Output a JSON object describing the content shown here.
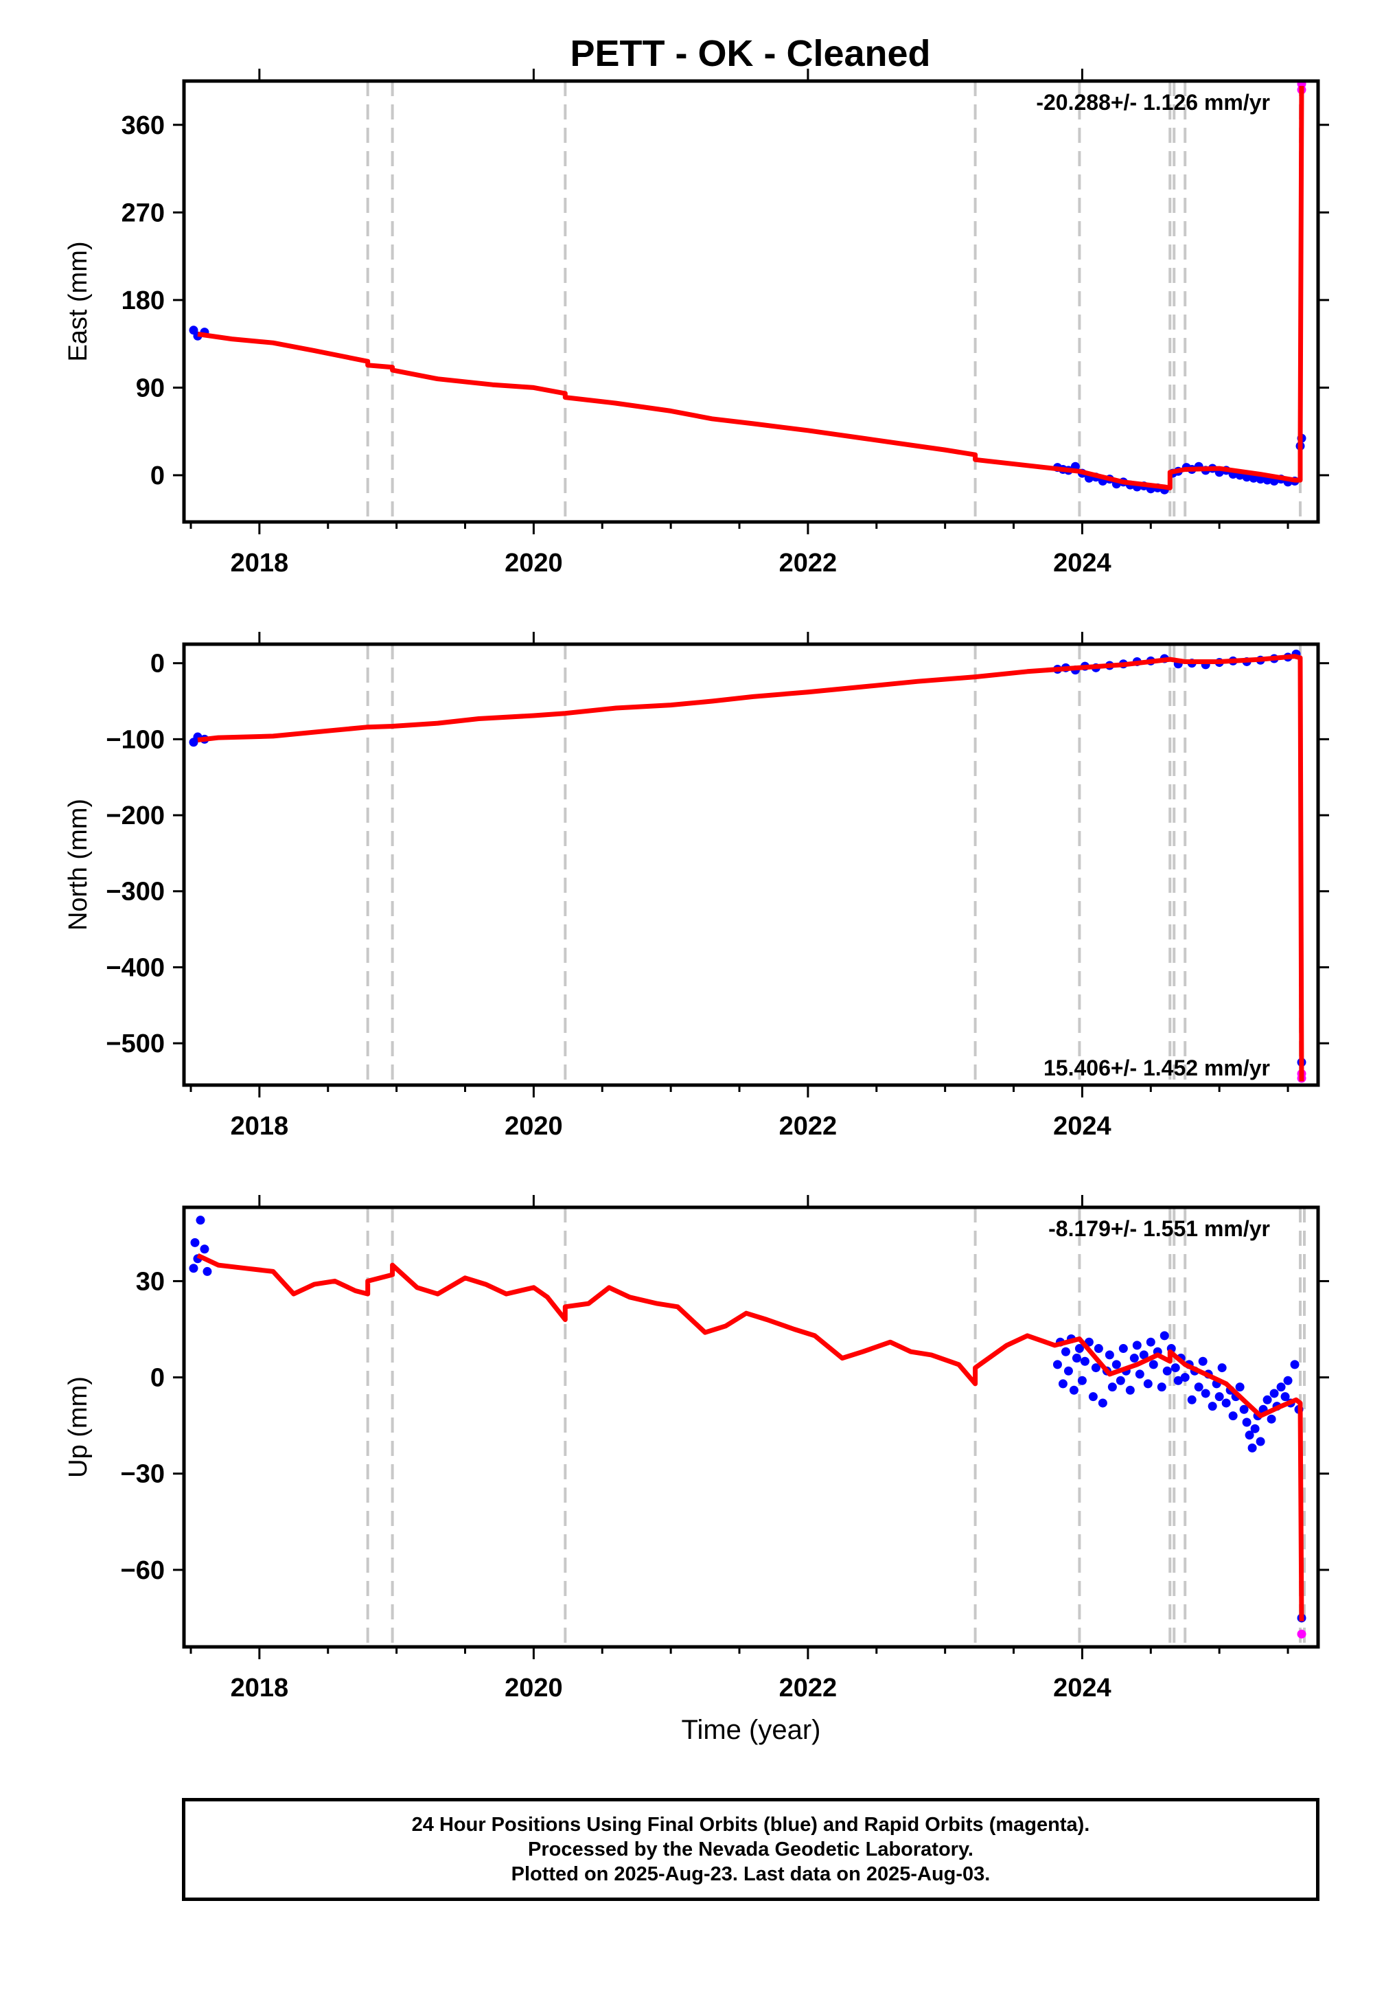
{
  "title": "PETT  - OK - Cleaned",
  "colors": {
    "final_orbits": "#0000ff",
    "rapid_orbits": "#ff00ff",
    "model": "#ff0000",
    "steps": "#c8c8c8",
    "axes": "#000000"
  },
  "chart_data": [
    {
      "type": "scatter",
      "name": "east",
      "ylabel": "East (mm)",
      "xlabel": "",
      "rate_label": "-20.288+/- 1.126 mm/yr",
      "rate_position": "top-right",
      "xlim": [
        2017.45,
        2025.72
      ],
      "ylim": [
        -48,
        405
      ],
      "yticks": [
        0,
        90,
        180,
        270,
        360
      ],
      "ytick_labels": [
        "0",
        "90",
        "180",
        "270",
        "360"
      ],
      "xticks": [
        2018,
        2020,
        2022,
        2024
      ],
      "xtick_labels": [
        "2018",
        "2020",
        "2022",
        "2024"
      ],
      "step_lines": [
        2018.79,
        2018.97,
        2020.23,
        2023.22,
        2023.98,
        2024.64,
        2024.67,
        2024.75,
        2025.59
      ],
      "model": [
        [
          2017.55,
          145
        ],
        [
          2017.8,
          140
        ],
        [
          2018.1,
          136
        ],
        [
          2018.4,
          128
        ],
        [
          2018.79,
          117
        ],
        [
          2018.79,
          113
        ],
        [
          2018.97,
          111
        ],
        [
          2018.97,
          108
        ],
        [
          2019.3,
          99
        ],
        [
          2019.7,
          93
        ],
        [
          2020.0,
          90
        ],
        [
          2020.23,
          84
        ],
        [
          2020.23,
          80
        ],
        [
          2020.6,
          74
        ],
        [
          2021.0,
          66
        ],
        [
          2021.3,
          58
        ],
        [
          2021.6,
          53
        ],
        [
          2022.0,
          46
        ],
        [
          2022.4,
          38
        ],
        [
          2022.8,
          30
        ],
        [
          2023.0,
          26
        ],
        [
          2023.22,
          21
        ],
        [
          2023.22,
          16
        ],
        [
          2023.6,
          10
        ],
        [
          2023.98,
          4
        ],
        [
          2024.3,
          -7
        ],
        [
          2024.6,
          -12
        ],
        [
          2024.64,
          -13
        ],
        [
          2024.64,
          3
        ],
        [
          2024.75,
          6
        ],
        [
          2025.0,
          7
        ],
        [
          2025.3,
          1
        ],
        [
          2025.55,
          -5
        ],
        [
          2025.59,
          -5
        ],
        [
          2025.59,
          33
        ],
        [
          2025.6,
          400
        ]
      ],
      "final_orbits": [
        [
          2017.52,
          149
        ],
        [
          2017.55,
          143
        ],
        [
          2017.6,
          147
        ],
        [
          2023.82,
          8
        ],
        [
          2023.86,
          6
        ],
        [
          2023.9,
          5
        ],
        [
          2023.95,
          9
        ],
        [
          2024.0,
          2
        ],
        [
          2024.05,
          -3
        ],
        [
          2024.1,
          -2
        ],
        [
          2024.15,
          -6
        ],
        [
          2024.2,
          -4
        ],
        [
          2024.25,
          -9
        ],
        [
          2024.3,
          -7
        ],
        [
          2024.35,
          -10
        ],
        [
          2024.4,
          -12
        ],
        [
          2024.45,
          -11
        ],
        [
          2024.5,
          -14
        ],
        [
          2024.55,
          -13
        ],
        [
          2024.6,
          -15
        ],
        [
          2024.66,
          2
        ],
        [
          2024.7,
          4
        ],
        [
          2024.76,
          8
        ],
        [
          2024.8,
          6
        ],
        [
          2024.85,
          9
        ],
        [
          2024.9,
          5
        ],
        [
          2024.95,
          7
        ],
        [
          2025.0,
          3
        ],
        [
          2025.05,
          5
        ],
        [
          2025.1,
          1
        ],
        [
          2025.15,
          0
        ],
        [
          2025.2,
          -2
        ],
        [
          2025.25,
          -3
        ],
        [
          2025.3,
          -4
        ],
        [
          2025.35,
          -5
        ],
        [
          2025.4,
          -6
        ],
        [
          2025.45,
          -4
        ],
        [
          2025.5,
          -7
        ],
        [
          2025.55,
          -6
        ],
        [
          2025.59,
          30
        ],
        [
          2025.6,
          38
        ]
      ],
      "rapid_orbits": [
        [
          2025.6,
          396
        ],
        [
          2025.6,
          402
        ]
      ]
    },
    {
      "type": "scatter",
      "name": "north",
      "ylabel": "North (mm)",
      "xlabel": "",
      "rate_label": "15.406+/- 1.452 mm/yr",
      "rate_position": "bottom-right",
      "xlim": [
        2017.45,
        2025.72
      ],
      "ylim": [
        -555,
        25
      ],
      "yticks": [
        0,
        -100,
        -200,
        -300,
        -400,
        -500
      ],
      "ytick_labels": [
        "0",
        "−100",
        "−200",
        "−300",
        "−400",
        "−500"
      ],
      "xticks": [
        2018,
        2020,
        2022,
        2024
      ],
      "xtick_labels": [
        "2018",
        "2020",
        "2022",
        "2024"
      ],
      "step_lines": [
        2018.79,
        2018.97,
        2020.23,
        2023.22,
        2023.98,
        2024.64,
        2024.67,
        2024.75,
        2025.59
      ],
      "model": [
        [
          2017.55,
          -101
        ],
        [
          2017.7,
          -98
        ],
        [
          2018.1,
          -96
        ],
        [
          2018.5,
          -89
        ],
        [
          2018.79,
          -84
        ],
        [
          2018.97,
          -83
        ],
        [
          2019.3,
          -79
        ],
        [
          2019.6,
          -73
        ],
        [
          2020.0,
          -69
        ],
        [
          2020.23,
          -66
        ],
        [
          2020.6,
          -59
        ],
        [
          2021.0,
          -55
        ],
        [
          2021.3,
          -50
        ],
        [
          2021.6,
          -44
        ],
        [
          2022.0,
          -38
        ],
        [
          2022.4,
          -31
        ],
        [
          2022.8,
          -24
        ],
        [
          2023.22,
          -18
        ],
        [
          2023.6,
          -11
        ],
        [
          2023.98,
          -6
        ],
        [
          2024.3,
          -2
        ],
        [
          2024.64,
          5
        ],
        [
          2024.75,
          2
        ],
        [
          2025.0,
          2
        ],
        [
          2025.3,
          5
        ],
        [
          2025.55,
          9
        ],
        [
          2025.59,
          7
        ],
        [
          2025.6,
          -550
        ]
      ],
      "final_orbits": [
        [
          2017.52,
          -104
        ],
        [
          2017.55,
          -97
        ],
        [
          2017.6,
          -100
        ],
        [
          2023.82,
          -8
        ],
        [
          2023.88,
          -6
        ],
        [
          2023.95,
          -9
        ],
        [
          2024.02,
          -4
        ],
        [
          2024.1,
          -6
        ],
        [
          2024.2,
          -3
        ],
        [
          2024.3,
          -1
        ],
        [
          2024.4,
          2
        ],
        [
          2024.5,
          3
        ],
        [
          2024.6,
          6
        ],
        [
          2024.7,
          -1
        ],
        [
          2024.8,
          0
        ],
        [
          2024.9,
          -2
        ],
        [
          2025.0,
          1
        ],
        [
          2025.1,
          3
        ],
        [
          2025.2,
          2
        ],
        [
          2025.3,
          4
        ],
        [
          2025.4,
          6
        ],
        [
          2025.5,
          8
        ],
        [
          2025.56,
          12
        ],
        [
          2025.6,
          -525
        ]
      ],
      "rapid_orbits": [
        [
          2025.6,
          -546
        ],
        [
          2025.6,
          -540
        ]
      ]
    },
    {
      "type": "scatter",
      "name": "up",
      "ylabel": "Up (mm)",
      "xlabel": "Time (year)",
      "rate_label": "-8.179+/- 1.551 mm/yr",
      "rate_position": "top-right",
      "xlim": [
        2017.45,
        2025.72
      ],
      "ylim": [
        -84,
        53
      ],
      "yticks": [
        30,
        0,
        -30,
        -60
      ],
      "ytick_labels": [
        "30",
        "0",
        "−30",
        "−60"
      ],
      "xticks": [
        2018,
        2020,
        2022,
        2024
      ],
      "xtick_labels": [
        "2018",
        "2020",
        "2022",
        "2024"
      ],
      "step_lines": [
        2018.79,
        2018.97,
        2020.23,
        2023.22,
        2023.98,
        2024.64,
        2024.67,
        2024.75,
        2025.59,
        2025.62
      ],
      "model": [
        [
          2017.55,
          38
        ],
        [
          2017.7,
          35
        ],
        [
          2017.9,
          34
        ],
        [
          2018.1,
          33
        ],
        [
          2018.25,
          26
        ],
        [
          2018.4,
          29
        ],
        [
          2018.55,
          30
        ],
        [
          2018.7,
          27
        ],
        [
          2018.79,
          26
        ],
        [
          2018.79,
          30
        ],
        [
          2018.97,
          32
        ],
        [
          2018.97,
          35
        ],
        [
          2019.15,
          28
        ],
        [
          2019.3,
          26
        ],
        [
          2019.5,
          31
        ],
        [
          2019.65,
          29
        ],
        [
          2019.8,
          26
        ],
        [
          2020.0,
          28
        ],
        [
          2020.1,
          25
        ],
        [
          2020.23,
          18
        ],
        [
          2020.23,
          22
        ],
        [
          2020.4,
          23
        ],
        [
          2020.55,
          28
        ],
        [
          2020.7,
          25
        ],
        [
          2020.9,
          23
        ],
        [
          2021.05,
          22
        ],
        [
          2021.25,
          14
        ],
        [
          2021.4,
          16
        ],
        [
          2021.55,
          20
        ],
        [
          2021.7,
          18
        ],
        [
          2021.9,
          15
        ],
        [
          2022.05,
          13
        ],
        [
          2022.25,
          6
        ],
        [
          2022.4,
          8
        ],
        [
          2022.6,
          11
        ],
        [
          2022.75,
          8
        ],
        [
          2022.9,
          7
        ],
        [
          2023.1,
          4
        ],
        [
          2023.22,
          -2
        ],
        [
          2023.22,
          3
        ],
        [
          2023.45,
          10
        ],
        [
          2023.6,
          13
        ],
        [
          2023.8,
          10
        ],
        [
          2023.98,
          12
        ],
        [
          2024.2,
          1
        ],
        [
          2024.4,
          4
        ],
        [
          2024.55,
          7
        ],
        [
          2024.64,
          5
        ],
        [
          2024.64,
          8
        ],
        [
          2024.75,
          4
        ],
        [
          2024.9,
          1
        ],
        [
          2025.05,
          -2
        ],
        [
          2025.2,
          -8
        ],
        [
          2025.3,
          -12
        ],
        [
          2025.45,
          -9
        ],
        [
          2025.56,
          -7
        ],
        [
          2025.59,
          -8
        ],
        [
          2025.6,
          -76
        ]
      ],
      "final_orbits": [
        [
          2017.52,
          34
        ],
        [
          2017.53,
          42
        ],
        [
          2017.55,
          37
        ],
        [
          2017.57,
          49
        ],
        [
          2017.6,
          40
        ],
        [
          2017.62,
          33
        ],
        [
          2023.82,
          4
        ],
        [
          2023.84,
          11
        ],
        [
          2023.86,
          -2
        ],
        [
          2023.88,
          8
        ],
        [
          2023.9,
          2
        ],
        [
          2023.92,
          12
        ],
        [
          2023.94,
          -4
        ],
        [
          2023.96,
          6
        ],
        [
          2023.98,
          9
        ],
        [
          2024.0,
          -1
        ],
        [
          2024.02,
          5
        ],
        [
          2024.05,
          11
        ],
        [
          2024.08,
          -6
        ],
        [
          2024.1,
          3
        ],
        [
          2024.12,
          9
        ],
        [
          2024.15,
          -8
        ],
        [
          2024.18,
          2
        ],
        [
          2024.2,
          7
        ],
        [
          2024.22,
          -3
        ],
        [
          2024.25,
          4
        ],
        [
          2024.28,
          -1
        ],
        [
          2024.3,
          9
        ],
        [
          2024.32,
          2
        ],
        [
          2024.35,
          -4
        ],
        [
          2024.38,
          6
        ],
        [
          2024.4,
          10
        ],
        [
          2024.42,
          1
        ],
        [
          2024.45,
          7
        ],
        [
          2024.48,
          -2
        ],
        [
          2024.5,
          11
        ],
        [
          2024.52,
          4
        ],
        [
          2024.55,
          8
        ],
        [
          2024.58,
          -3
        ],
        [
          2024.6,
          13
        ],
        [
          2024.62,
          2
        ],
        [
          2024.65,
          9
        ],
        [
          2024.68,
          3
        ],
        [
          2024.7,
          -1
        ],
        [
          2024.72,
          6
        ],
        [
          2024.75,
          0
        ],
        [
          2024.78,
          4
        ],
        [
          2024.8,
          -7
        ],
        [
          2024.82,
          2
        ],
        [
          2024.85,
          -3
        ],
        [
          2024.88,
          5
        ],
        [
          2024.9,
          -5
        ],
        [
          2024.92,
          1
        ],
        [
          2024.95,
          -9
        ],
        [
          2024.98,
          -2
        ],
        [
          2025.0,
          -6
        ],
        [
          2025.02,
          3
        ],
        [
          2025.05,
          -8
        ],
        [
          2025.08,
          -4
        ],
        [
          2025.1,
          -12
        ],
        [
          2025.12,
          -6
        ],
        [
          2025.15,
          -3
        ],
        [
          2025.18,
          -10
        ],
        [
          2025.2,
          -14
        ],
        [
          2025.22,
          -18
        ],
        [
          2025.24,
          -22
        ],
        [
          2025.26,
          -16
        ],
        [
          2025.28,
          -12
        ],
        [
          2025.3,
          -20
        ],
        [
          2025.32,
          -10
        ],
        [
          2025.35,
          -7
        ],
        [
          2025.38,
          -13
        ],
        [
          2025.4,
          -5
        ],
        [
          2025.42,
          -9
        ],
        [
          2025.45,
          -3
        ],
        [
          2025.48,
          -6
        ],
        [
          2025.5,
          -1
        ],
        [
          2025.52,
          -8
        ],
        [
          2025.55,
          4
        ],
        [
          2025.58,
          -10
        ],
        [
          2025.6,
          -75
        ]
      ],
      "rapid_orbits": [
        [
          2025.6,
          -80
        ]
      ]
    }
  ],
  "footer": {
    "line1": "24 Hour Positions Using Final Orbits (blue) and Rapid Orbits (magenta).",
    "line2": "Processed by the Nevada Geodetic Laboratory.",
    "line3": "Plotted on 2025-Aug-23. Last data on 2025-Aug-03."
  }
}
